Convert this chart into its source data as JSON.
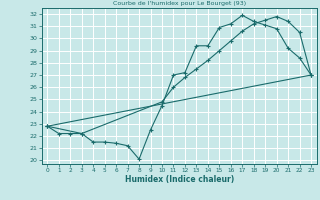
{
  "title": "Courbe de l'humidex pour Le Bourget (93)",
  "xlabel": "Humidex (Indice chaleur)",
  "bg_color": "#c8e8e8",
  "line_color": "#1a6b6b",
  "grid_color": "#ffffff",
  "xlim": [
    -0.5,
    23.5
  ],
  "ylim": [
    19.7,
    32.5
  ],
  "xticks": [
    0,
    1,
    2,
    3,
    4,
    5,
    6,
    7,
    8,
    9,
    10,
    11,
    12,
    13,
    14,
    15,
    16,
    17,
    18,
    19,
    20,
    21,
    22,
    23
  ],
  "yticks": [
    20,
    21,
    22,
    23,
    24,
    25,
    26,
    27,
    28,
    29,
    30,
    31,
    32
  ],
  "line1": {
    "x": [
      0,
      1,
      2,
      3,
      4,
      5,
      6,
      7,
      8,
      9,
      10,
      11,
      12,
      13,
      14,
      15,
      16,
      17,
      18,
      19,
      20,
      21,
      22,
      23
    ],
    "y": [
      22.8,
      22.2,
      22.2,
      22.2,
      21.5,
      21.5,
      21.4,
      21.2,
      20.1,
      22.5,
      24.5,
      27.0,
      27.2,
      29.4,
      29.4,
      30.9,
      31.2,
      31.9,
      31.4,
      31.1,
      30.8,
      29.2,
      28.4,
      27.0
    ]
  },
  "line2": {
    "x": [
      0,
      3,
      10,
      11,
      12,
      13,
      14,
      15,
      16,
      17,
      18,
      19,
      20,
      21,
      22,
      23
    ],
    "y": [
      22.8,
      22.2,
      24.8,
      26.0,
      26.8,
      27.5,
      28.2,
      29.0,
      29.8,
      30.6,
      31.2,
      31.5,
      31.8,
      31.4,
      30.5,
      27.0
    ]
  },
  "line3": {
    "x": [
      0,
      23
    ],
    "y": [
      22.8,
      27.0
    ]
  }
}
